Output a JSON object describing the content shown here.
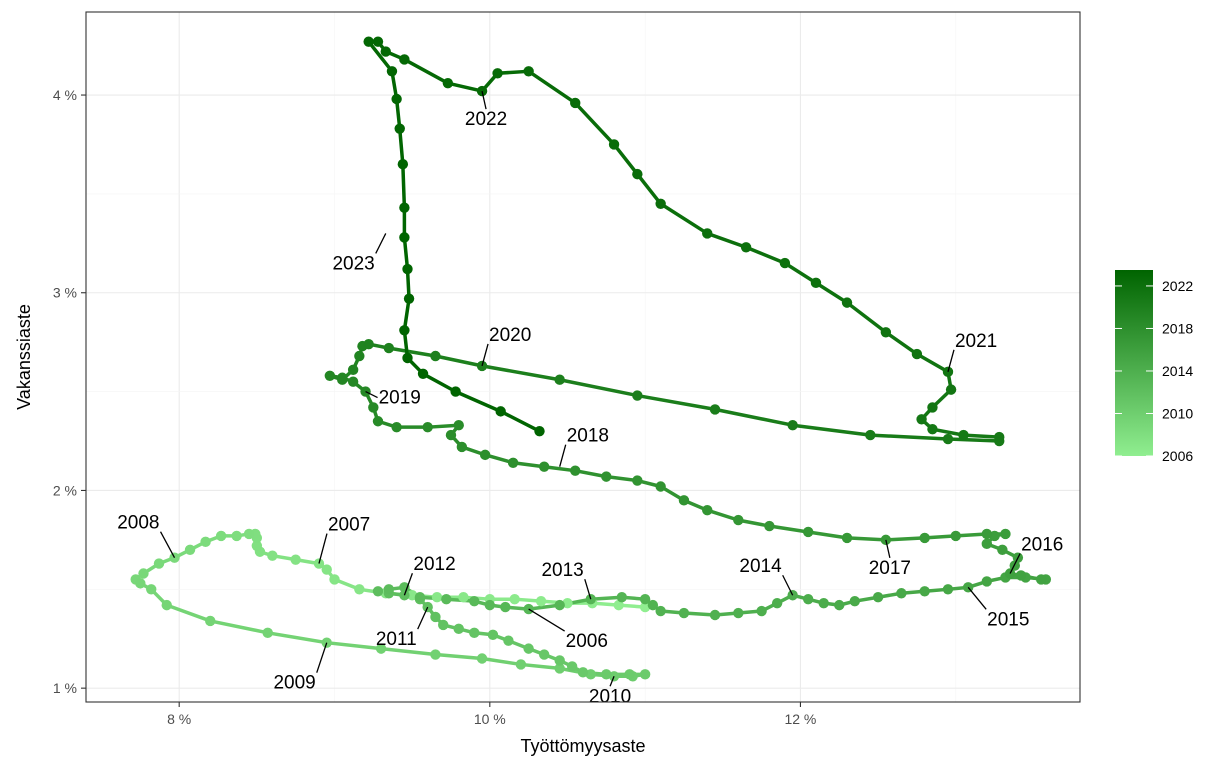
{
  "chart_data": {
    "type": "line",
    "subtype": "connected-scatter (Beveridge curve), monthly points connected in time order",
    "title": "",
    "xlabel": "Työttömyysaste",
    "ylabel": "Vakanssiaste",
    "xlim": [
      7.4,
      13.8
    ],
    "ylim": [
      0.93,
      4.42
    ],
    "x_ticks": [
      8,
      10,
      12
    ],
    "x_tick_labels": [
      "8 %",
      "10 %",
      "12 %"
    ],
    "y_ticks": [
      1,
      2,
      3,
      4
    ],
    "y_tick_labels": [
      "1 %",
      "2 %",
      "3 %",
      "4 %"
    ],
    "grid": true,
    "legend": {
      "placement": "right",
      "type": "colorbar",
      "labels": [
        "2006",
        "2010",
        "2014",
        "2018",
        "2022"
      ],
      "values": [
        2006,
        2010,
        2014,
        2018,
        2022
      ],
      "range": [
        2006,
        2023.5
      ],
      "color_low": "#90ee90",
      "color_high": "#006400"
    },
    "points": [
      [
        11.0,
        1.41,
        2006.0
      ],
      [
        10.83,
        1.42,
        2006.1
      ],
      [
        10.66,
        1.43,
        2006.2
      ],
      [
        10.5,
        1.43,
        2006.3
      ],
      [
        10.33,
        1.44,
        2006.4
      ],
      [
        10.16,
        1.45,
        2006.5
      ],
      [
        10.0,
        1.45,
        2006.6
      ],
      [
        9.83,
        1.46,
        2006.7
      ],
      [
        9.66,
        1.46,
        2006.8
      ],
      [
        9.5,
        1.47,
        2006.9
      ],
      [
        9.33,
        1.48,
        2007.0
      ],
      [
        9.16,
        1.5,
        2007.1
      ],
      [
        9.0,
        1.55,
        2007.2
      ],
      [
        8.95,
        1.6,
        2007.3
      ],
      [
        8.9,
        1.63,
        2007.4
      ],
      [
        8.75,
        1.65,
        2007.5
      ],
      [
        8.6,
        1.67,
        2007.6
      ],
      [
        8.52,
        1.69,
        2007.7
      ],
      [
        8.5,
        1.72,
        2007.8
      ],
      [
        8.5,
        1.76,
        2007.9
      ],
      [
        8.49,
        1.78,
        2008.0
      ],
      [
        8.45,
        1.78,
        2008.1
      ],
      [
        8.37,
        1.77,
        2008.2
      ],
      [
        8.27,
        1.77,
        2008.3
      ],
      [
        8.17,
        1.74,
        2008.4
      ],
      [
        8.07,
        1.7,
        2008.5
      ],
      [
        7.97,
        1.66,
        2008.6
      ],
      [
        7.87,
        1.63,
        2008.7
      ],
      [
        7.77,
        1.58,
        2008.8
      ],
      [
        7.72,
        1.55,
        2008.9
      ],
      [
        7.75,
        1.53,
        2009.0
      ],
      [
        7.82,
        1.5,
        2009.1
      ],
      [
        7.92,
        1.42,
        2009.2
      ],
      [
        8.2,
        1.34,
        2009.3
      ],
      [
        8.57,
        1.28,
        2009.4
      ],
      [
        8.95,
        1.23,
        2009.5
      ],
      [
        9.3,
        1.2,
        2009.6
      ],
      [
        9.65,
        1.17,
        2009.7
      ],
      [
        9.95,
        1.15,
        2009.8
      ],
      [
        10.2,
        1.12,
        2009.9
      ],
      [
        10.45,
        1.1,
        2010.0
      ],
      [
        10.65,
        1.07,
        2010.1
      ],
      [
        10.8,
        1.06,
        2010.2
      ],
      [
        10.92,
        1.06,
        2010.3
      ],
      [
        11.0,
        1.07,
        2010.4
      ],
      [
        10.9,
        1.07,
        2010.5
      ],
      [
        10.75,
        1.07,
        2010.6
      ],
      [
        10.6,
        1.08,
        2010.7
      ],
      [
        10.53,
        1.11,
        2010.8
      ],
      [
        10.45,
        1.14,
        2010.9
      ],
      [
        10.35,
        1.17,
        2011.0
      ],
      [
        10.25,
        1.2,
        2011.1
      ],
      [
        10.12,
        1.24,
        2011.2
      ],
      [
        10.02,
        1.27,
        2011.3
      ],
      [
        9.9,
        1.28,
        2011.4
      ],
      [
        9.8,
        1.3,
        2011.5
      ],
      [
        9.7,
        1.32,
        2011.6
      ],
      [
        9.65,
        1.36,
        2011.7
      ],
      [
        9.6,
        1.41,
        2011.8
      ],
      [
        9.55,
        1.45,
        2011.9
      ],
      [
        9.45,
        1.47,
        2012.0
      ],
      [
        9.35,
        1.48,
        2012.1
      ],
      [
        9.28,
        1.49,
        2012.2
      ],
      [
        9.35,
        1.5,
        2012.3
      ],
      [
        9.45,
        1.51,
        2012.4
      ],
      [
        9.55,
        1.46,
        2012.5
      ],
      [
        9.72,
        1.45,
        2012.6
      ],
      [
        9.9,
        1.44,
        2012.7
      ],
      [
        10.0,
        1.42,
        2012.8
      ],
      [
        10.1,
        1.41,
        2012.9
      ],
      [
        10.25,
        1.4,
        2013.0
      ],
      [
        10.45,
        1.42,
        2013.1
      ],
      [
        10.65,
        1.45,
        2013.2
      ],
      [
        10.85,
        1.46,
        2013.3
      ],
      [
        11.0,
        1.45,
        2013.4
      ],
      [
        11.05,
        1.42,
        2013.5
      ],
      [
        11.1,
        1.39,
        2013.6
      ],
      [
        11.25,
        1.38,
        2013.7
      ],
      [
        11.45,
        1.37,
        2013.8
      ],
      [
        11.6,
        1.38,
        2013.9
      ],
      [
        11.75,
        1.39,
        2014.0
      ],
      [
        11.85,
        1.43,
        2014.1
      ],
      [
        11.95,
        1.47,
        2014.2
      ],
      [
        12.05,
        1.45,
        2014.3
      ],
      [
        12.15,
        1.43,
        2014.4
      ],
      [
        12.25,
        1.42,
        2014.5
      ],
      [
        12.35,
        1.44,
        2014.6
      ],
      [
        12.5,
        1.46,
        2014.7
      ],
      [
        12.65,
        1.48,
        2014.8
      ],
      [
        12.8,
        1.49,
        2014.9
      ],
      [
        12.95,
        1.5,
        2015.0
      ],
      [
        13.08,
        1.51,
        2015.1
      ],
      [
        13.2,
        1.54,
        2015.2
      ],
      [
        13.32,
        1.56,
        2015.3
      ],
      [
        13.45,
        1.56,
        2015.4
      ],
      [
        13.58,
        1.55,
        2015.5
      ],
      [
        13.55,
        1.55,
        2015.6
      ],
      [
        13.42,
        1.57,
        2015.7
      ],
      [
        13.35,
        1.58,
        2015.8
      ],
      [
        13.38,
        1.62,
        2015.9
      ],
      [
        13.4,
        1.66,
        2016.0
      ],
      [
        13.3,
        1.7,
        2016.1
      ],
      [
        13.2,
        1.73,
        2016.2
      ],
      [
        13.25,
        1.77,
        2016.3
      ],
      [
        13.32,
        1.78,
        2016.4
      ],
      [
        13.2,
        1.78,
        2016.5
      ],
      [
        13.0,
        1.77,
        2016.6
      ],
      [
        12.8,
        1.76,
        2016.7
      ],
      [
        12.55,
        1.75,
        2016.8
      ],
      [
        12.3,
        1.76,
        2016.9
      ],
      [
        12.05,
        1.79,
        2017.0
      ],
      [
        11.8,
        1.82,
        2017.1
      ],
      [
        11.6,
        1.85,
        2017.2
      ],
      [
        11.4,
        1.9,
        2017.3
      ],
      [
        11.25,
        1.95,
        2017.4
      ],
      [
        11.1,
        2.02,
        2017.5
      ],
      [
        10.95,
        2.05,
        2017.6
      ],
      [
        10.75,
        2.07,
        2017.7
      ],
      [
        10.55,
        2.1,
        2017.8
      ],
      [
        10.35,
        2.12,
        2017.9
      ],
      [
        10.15,
        2.14,
        2018.0
      ],
      [
        9.97,
        2.18,
        2018.1
      ],
      [
        9.82,
        2.22,
        2018.2
      ],
      [
        9.75,
        2.28,
        2018.3
      ],
      [
        9.8,
        2.33,
        2018.4
      ],
      [
        9.6,
        2.32,
        2018.5
      ],
      [
        9.4,
        2.32,
        2018.6
      ],
      [
        9.28,
        2.35,
        2018.7
      ],
      [
        9.25,
        2.42,
        2018.8
      ],
      [
        9.2,
        2.5,
        2018.9
      ],
      [
        9.12,
        2.55,
        2019.0
      ],
      [
        9.05,
        2.57,
        2019.1
      ],
      [
        8.97,
        2.58,
        2019.2
      ],
      [
        9.05,
        2.56,
        2019.3
      ],
      [
        9.12,
        2.61,
        2019.4
      ],
      [
        9.16,
        2.68,
        2019.5
      ],
      [
        9.18,
        2.73,
        2019.6
      ],
      [
        9.22,
        2.74,
        2019.7
      ],
      [
        9.35,
        2.72,
        2019.8
      ],
      [
        9.65,
        2.68,
        2019.9
      ],
      [
        9.95,
        2.63,
        2020.0
      ],
      [
        10.45,
        2.56,
        2020.1
      ],
      [
        10.95,
        2.48,
        2020.2
      ],
      [
        11.45,
        2.41,
        2020.3
      ],
      [
        11.95,
        2.33,
        2020.4
      ],
      [
        12.45,
        2.28,
        2020.5
      ],
      [
        12.95,
        2.26,
        2020.6
      ],
      [
        13.28,
        2.25,
        2020.7
      ],
      [
        13.28,
        2.27,
        2020.8
      ],
      [
        13.05,
        2.28,
        2020.9
      ],
      [
        12.85,
        2.31,
        2021.0
      ],
      [
        12.78,
        2.36,
        2021.1
      ],
      [
        12.85,
        2.42,
        2021.2
      ],
      [
        12.97,
        2.51,
        2021.3
      ],
      [
        12.95,
        2.6,
        2021.4
      ],
      [
        12.75,
        2.69,
        2021.5
      ],
      [
        12.55,
        2.8,
        2021.6
      ],
      [
        12.3,
        2.95,
        2021.7
      ],
      [
        12.1,
        3.05,
        2021.8
      ],
      [
        11.9,
        3.15,
        2021.9
      ],
      [
        11.65,
        3.23,
        2022.0
      ],
      [
        11.4,
        3.3,
        2022.1
      ],
      [
        11.1,
        3.45,
        2022.2
      ],
      [
        10.95,
        3.6,
        2022.3
      ],
      [
        10.8,
        3.75,
        2022.4
      ],
      [
        10.55,
        3.96,
        2022.5
      ],
      [
        10.25,
        4.12,
        2022.6
      ],
      [
        10.05,
        4.11,
        2022.7
      ],
      [
        9.95,
        4.02,
        2022.8
      ],
      [
        9.73,
        4.06,
        2022.9
      ],
      [
        9.45,
        4.18,
        2023.0
      ],
      [
        9.33,
        4.22,
        2023.05
      ],
      [
        9.28,
        4.27,
        2023.1
      ],
      [
        9.22,
        4.27,
        2023.15
      ],
      [
        9.37,
        4.12,
        2023.2
      ],
      [
        9.4,
        3.98,
        2023.25
      ],
      [
        9.42,
        3.83,
        2023.3
      ],
      [
        9.44,
        3.65,
        2023.35
      ],
      [
        9.45,
        3.43,
        2023.4
      ],
      [
        9.45,
        3.28,
        2023.45
      ],
      [
        9.47,
        3.12,
        2023.5
      ],
      [
        9.48,
        2.97,
        2023.55
      ],
      [
        9.45,
        2.81,
        2023.6
      ],
      [
        9.47,
        2.67,
        2023.65
      ],
      [
        9.57,
        2.59,
        2023.7
      ],
      [
        9.78,
        2.5,
        2023.8
      ],
      [
        10.07,
        2.4,
        2023.9
      ],
      [
        10.32,
        2.3,
        2024.0
      ]
    ],
    "annotations": [
      {
        "text": "2006",
        "x": 10.25,
        "y": 1.4
      },
      {
        "text": "2007",
        "x": 8.9,
        "y": 1.63
      },
      {
        "text": "2008",
        "x": 7.97,
        "y": 1.66
      },
      {
        "text": "2009",
        "x": 8.95,
        "y": 1.23
      },
      {
        "text": "2010",
        "x": 10.8,
        "y": 1.06
      },
      {
        "text": "2011",
        "x": 9.6,
        "y": 1.41
      },
      {
        "text": "2012",
        "x": 9.45,
        "y": 1.47
      },
      {
        "text": "2013",
        "x": 10.65,
        "y": 1.45
      },
      {
        "text": "2014",
        "x": 11.95,
        "y": 1.47
      },
      {
        "text": "2015",
        "x": 13.08,
        "y": 1.51
      },
      {
        "text": "2016",
        "x": 13.35,
        "y": 1.58
      },
      {
        "text": "2017",
        "x": 12.55,
        "y": 1.75
      },
      {
        "text": "2018",
        "x": 10.45,
        "y": 2.12
      },
      {
        "text": "2019",
        "x": 9.2,
        "y": 2.5
      },
      {
        "text": "2020",
        "x": 9.95,
        "y": 2.63
      },
      {
        "text": "2021",
        "x": 12.95,
        "y": 2.6
      },
      {
        "text": "2022",
        "x": 9.95,
        "y": 4.02
      },
      {
        "text": "2023",
        "x": 9.33,
        "y": 3.3
      }
    ]
  }
}
